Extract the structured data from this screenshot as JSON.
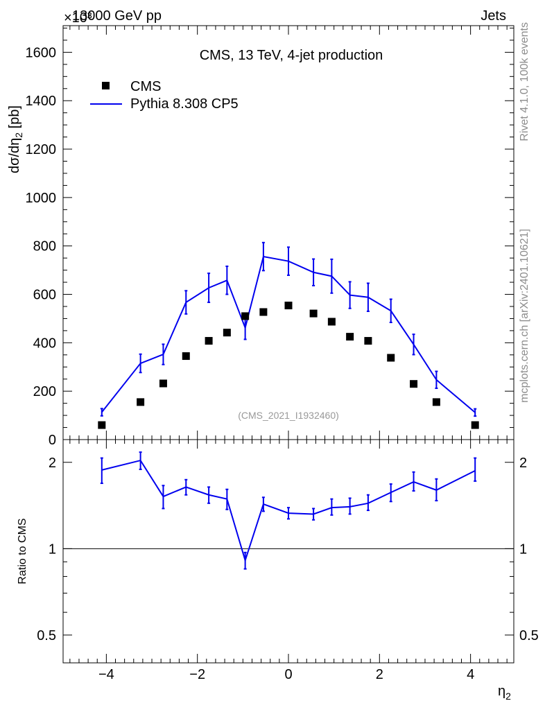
{
  "header": {
    "left": "13000 GeV pp",
    "right": "Jets",
    "exponent": "×10³"
  },
  "side_labels": {
    "rivet": "Rivet 4.1.0,  100k events",
    "mcplots": "mcplots.cern.ch [arXiv:2401.10621]"
  },
  "colors": {
    "mc": "#0000ee",
    "data": "#000000",
    "watermark": "#999999"
  },
  "chart_data": [
    {
      "type": "scatter",
      "title": "CMS, 13 TeV, 4-jet production",
      "xlabel": "η",
      "xlabel_sub": "2",
      "ylabel": "dσ/dη",
      "ylabel_sub": "2",
      "ylabel_unit": " [pb]",
      "watermark": "(CMS_2021_I1932460)",
      "xlim": [
        -4.95,
        4.95
      ],
      "ylim": [
        0,
        1710
      ],
      "yticks": [
        0,
        200,
        400,
        600,
        800,
        1000,
        1200,
        1400,
        1600
      ],
      "yticklabels": [
        "0",
        "200",
        "400",
        "600",
        "800",
        "1000",
        "1200",
        "1400",
        "1600"
      ],
      "legend": {
        "position": "top-left",
        "entries": [
          "CMS",
          "Pythia 8.308 CP5"
        ]
      },
      "x": [
        -4.1,
        -3.25,
        -2.75,
        -2.25,
        -1.75,
        -1.35,
        -0.95,
        -0.55,
        0,
        0.55,
        0.95,
        1.35,
        1.75,
        2.25,
        2.75,
        3.25,
        4.1
      ],
      "series": [
        {
          "name": "CMS",
          "style": "markers",
          "values": [
            60,
            155,
            232,
            345,
            408,
            442,
            510,
            527,
            554,
            521,
            487,
            425,
            408,
            338,
            230,
            155,
            60
          ]
        },
        {
          "name": "Pythia 8.308 CP5",
          "style": "line",
          "values": [
            113,
            315,
            352,
            567,
            627,
            658,
            462,
            756,
            737,
            691,
            675,
            597,
            588,
            532,
            393,
            247,
            112
          ],
          "errors": [
            15,
            38,
            42,
            48,
            60,
            58,
            48,
            58,
            58,
            55,
            70,
            55,
            58,
            48,
            42,
            35,
            15
          ]
        }
      ]
    },
    {
      "type": "line",
      "title": "",
      "xlabel": "η",
      "ylabel": "Ratio to CMS",
      "ylim": [
        0.4,
        2.4
      ],
      "yscale": "log",
      "yticks": [
        0.5,
        1,
        2
      ],
      "yticklabels": [
        "0.5",
        "1",
        "2"
      ],
      "xticks": [
        -4,
        -2,
        0,
        2,
        4
      ],
      "xticklabels": [
        "−4",
        "−2",
        "0",
        "2",
        "4"
      ],
      "x": [
        -4.1,
        -3.25,
        -2.75,
        -2.25,
        -1.75,
        -1.35,
        -0.95,
        -0.55,
        0,
        0.55,
        0.95,
        1.35,
        1.75,
        2.25,
        2.75,
        3.25,
        4.1
      ],
      "series": [
        {
          "name": "Pythia 8.308 CP5 / CMS",
          "values": [
            1.88,
            2.03,
            1.52,
            1.64,
            1.54,
            1.49,
            0.91,
            1.43,
            1.33,
            1.32,
            1.39,
            1.4,
            1.44,
            1.57,
            1.71,
            1.6,
            1.87
          ],
          "err_lo": [
            0.19,
            0.14,
            0.14,
            0.1,
            0.1,
            0.12,
            0.06,
            0.08,
            0.06,
            0.06,
            0.08,
            0.08,
            0.08,
            0.11,
            0.12,
            0.13,
            0.15
          ],
          "err_hi": [
            0.19,
            0.14,
            0.14,
            0.1,
            0.1,
            0.12,
            0.06,
            0.08,
            0.06,
            0.06,
            0.1,
            0.1,
            0.1,
            0.11,
            0.14,
            0.15,
            0.2
          ]
        }
      ],
      "reference": 1
    }
  ]
}
